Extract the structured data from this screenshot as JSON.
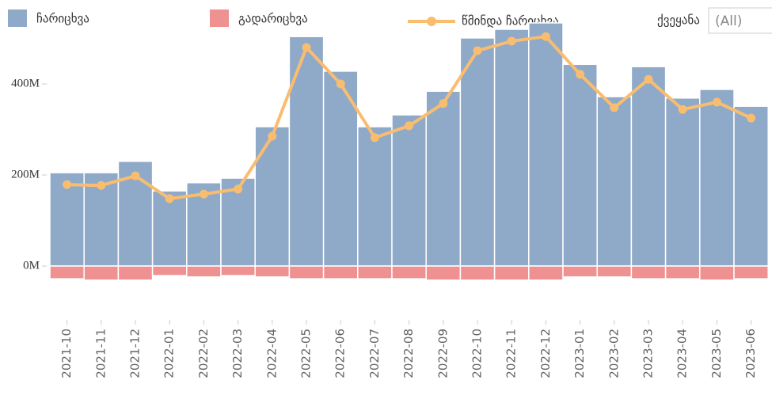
{
  "chart_data": {
    "type": "bar",
    "categories": [
      "2021-10",
      "2021-11",
      "2021-12",
      "2022-01",
      "2022-02",
      "2022-03",
      "2022-04",
      "2022-05",
      "2022-06",
      "2022-07",
      "2022-08",
      "2022-09",
      "2022-10",
      "2022-11",
      "2022-12",
      "2023-01",
      "2023-02",
      "2023-03",
      "2023-04",
      "2023-05",
      "2023-06"
    ],
    "series": [
      {
        "name": "ჩარიცხვა",
        "type": "bar",
        "color": "#8fa9c8",
        "values": [
          205,
          205,
          230,
          165,
          183,
          193,
          306,
          504,
          428,
          306,
          332,
          384,
          501,
          520,
          534,
          443,
          372,
          438,
          369,
          388,
          351
        ]
      },
      {
        "name": "გადარიცხვა",
        "type": "bar",
        "color": "#ef9191",
        "values": [
          -28,
          -31,
          -31,
          -21,
          -24,
          -21,
          -24,
          -28,
          -28,
          -28,
          -28,
          -31,
          -31,
          -31,
          -31,
          -24,
          -24,
          -28,
          -28,
          -31,
          -28
        ]
      },
      {
        "name": "წმინდა ჩარიცხვა",
        "type": "line",
        "color": "#f9bd70",
        "values": [
          179,
          177,
          198,
          148,
          158,
          169,
          285,
          480,
          400,
          282,
          308,
          357,
          473,
          494,
          504,
          421,
          348,
          410,
          344,
          360,
          325
        ]
      }
    ],
    "ylim": [
      -40,
      560
    ],
    "yticks": [
      {
        "value": 0,
        "label": "0M"
      },
      {
        "value": 200,
        "label": "200M"
      },
      {
        "value": 400,
        "label": "400M"
      }
    ],
    "filter": {
      "label": "ქვეყანა",
      "value": "(All)"
    }
  }
}
